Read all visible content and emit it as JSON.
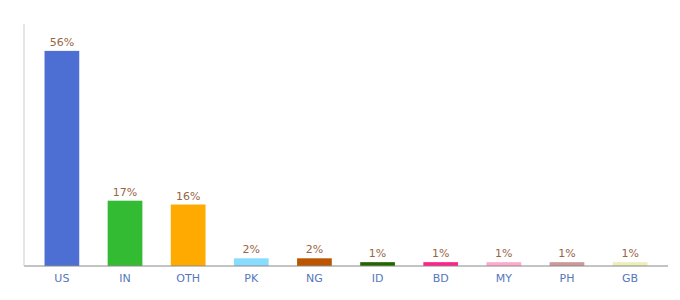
{
  "chart_data": {
    "type": "bar",
    "categories": [
      "US",
      "IN",
      "OTH",
      "PK",
      "NG",
      "ID",
      "BD",
      "MY",
      "PH",
      "GB"
    ],
    "values": [
      56,
      17,
      16,
      2,
      2,
      1,
      1,
      1,
      1,
      1
    ],
    "value_labels": [
      "56%",
      "17%",
      "16%",
      "2%",
      "2%",
      "1%",
      "1%",
      "1%",
      "1%",
      "1%"
    ],
    "colors": [
      "#4d6fd4",
      "#33bb33",
      "#ffaa00",
      "#88ddff",
      "#bb5500",
      "#226600",
      "#ff2288",
      "#ffaacc",
      "#cc9999",
      "#eeeebb"
    ],
    "ylim": [
      0,
      63
    ],
    "data_labels": true,
    "tick_labels": "x",
    "grid": false
  }
}
